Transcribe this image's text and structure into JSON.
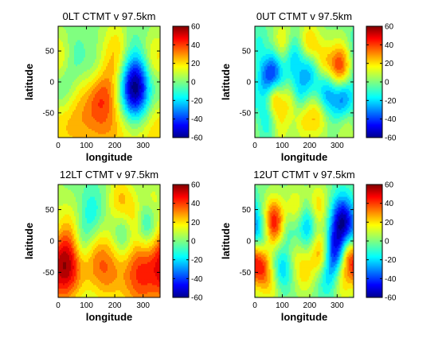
{
  "chart_data": [
    {
      "type": "heatmap",
      "title": "0LT CTMT v 97.5km",
      "xlabel": "longitude",
      "ylabel": "latitude",
      "xlim": [
        0,
        360
      ],
      "ylim": [
        -90,
        90
      ],
      "xticks": [
        "0",
        "100",
        "200",
        "300"
      ],
      "yticks": [
        "50",
        "0",
        "-50"
      ],
      "colorbar": {
        "min": -60,
        "max": 60,
        "ticks": [
          "60",
          "40",
          "20",
          "0",
          "-20",
          "-40",
          "-60"
        ],
        "colormap": "jet"
      },
      "features": [
        {
          "lon": 280,
          "lat": -15,
          "value": -55,
          "r": 40
        },
        {
          "lon": 255,
          "lat": -5,
          "value": -30,
          "r": 35
        },
        {
          "lon": 55,
          "lat": 35,
          "value": -12,
          "r": 30
        },
        {
          "lon": 130,
          "lat": 15,
          "value": -15,
          "r": 30
        },
        {
          "lon": 20,
          "lat": -15,
          "value": -15,
          "r": 28
        },
        {
          "lon": 250,
          "lat": 65,
          "value": -10,
          "r": 30
        },
        {
          "lon": 220,
          "lat": 45,
          "value": 25,
          "r": 40
        },
        {
          "lon": 145,
          "lat": -15,
          "value": 22,
          "r": 35
        },
        {
          "lon": 20,
          "lat": 40,
          "value": 12,
          "r": 30
        },
        {
          "lon": 330,
          "lat": 35,
          "value": 15,
          "r": 30
        },
        {
          "lon": 180,
          "lat": -60,
          "value": 25,
          "r": 60
        },
        {
          "lon": 60,
          "lat": -60,
          "value": 20,
          "r": 50
        },
        {
          "lon": 310,
          "lat": -60,
          "value": 22,
          "r": 50
        }
      ]
    },
    {
      "type": "heatmap",
      "title": "0UT CTMT v 97.5km",
      "xlabel": "longitude",
      "ylabel": "latitude",
      "xlim": [
        0,
        360
      ],
      "ylim": [
        -90,
        90
      ],
      "xticks": [
        "0",
        "100",
        "200",
        "300"
      ],
      "yticks": [
        "50",
        "0",
        "-50"
      ],
      "colorbar": {
        "min": -60,
        "max": 60,
        "ticks": [
          "60",
          "40",
          "20",
          "0",
          "-20",
          "-40",
          "-60"
        ],
        "colormap": "jet"
      },
      "features": [
        {
          "lon": 60,
          "lat": 10,
          "value": -50,
          "r": 30
        },
        {
          "lon": 310,
          "lat": 20,
          "value": 45,
          "r": 28
        },
        {
          "lon": 320,
          "lat": -25,
          "value": -40,
          "r": 28
        },
        {
          "lon": 70,
          "lat": -25,
          "value": 40,
          "r": 22
        },
        {
          "lon": 260,
          "lat": -15,
          "value": -28,
          "r": 26
        },
        {
          "lon": 200,
          "lat": 20,
          "value": -25,
          "r": 25
        },
        {
          "lon": 140,
          "lat": 40,
          "value": -20,
          "r": 25
        },
        {
          "lon": 20,
          "lat": 55,
          "value": -15,
          "r": 25
        },
        {
          "lon": 160,
          "lat": -20,
          "value": -20,
          "r": 25
        },
        {
          "lon": 100,
          "lat": 60,
          "value": 20,
          "r": 25
        },
        {
          "lon": 200,
          "lat": 60,
          "value": 25,
          "r": 25
        },
        {
          "lon": 250,
          "lat": 30,
          "value": 20,
          "r": 25
        },
        {
          "lon": 40,
          "lat": 45,
          "value": 15,
          "r": 22
        },
        {
          "lon": 130,
          "lat": -30,
          "value": 18,
          "r": 22
        },
        {
          "lon": 230,
          "lat": -55,
          "value": 20,
          "r": 25
        },
        {
          "lon": 180,
          "lat": -60,
          "value": 18,
          "r": 25
        },
        {
          "lon": 90,
          "lat": -70,
          "value": 15,
          "r": 25
        },
        {
          "lon": 50,
          "lat": -60,
          "value": -18,
          "r": 25
        },
        {
          "lon": 330,
          "lat": -65,
          "value": 15,
          "r": 25
        }
      ]
    },
    {
      "type": "heatmap",
      "title": "12LT CTMT v 97.5km",
      "xlabel": "longitude",
      "ylabel": "latitude",
      "xlim": [
        0,
        360
      ],
      "ylim": [
        -90,
        90
      ],
      "xticks": [
        "0",
        "100",
        "200",
        "300"
      ],
      "yticks": [
        "50",
        "0",
        "-50"
      ],
      "colorbar": {
        "min": -60,
        "max": 60,
        "ticks": [
          "60",
          "40",
          "20",
          "0",
          "-20",
          "-40",
          "-60"
        ],
        "colormap": "jet"
      },
      "features": [
        {
          "lon": 290,
          "lat": -50,
          "value": 40,
          "r": 50
        },
        {
          "lon": 30,
          "lat": -50,
          "value": 35,
          "r": 40
        },
        {
          "lon": 170,
          "lat": -45,
          "value": 28,
          "r": 40
        },
        {
          "lon": 110,
          "lat": -20,
          "value": 20,
          "r": 35
        },
        {
          "lon": 30,
          "lat": -20,
          "value": 20,
          "r": 35
        },
        {
          "lon": 90,
          "lat": -5,
          "value": -22,
          "r": 28
        },
        {
          "lon": 230,
          "lat": 10,
          "value": -20,
          "r": 28
        },
        {
          "lon": 310,
          "lat": 25,
          "value": -25,
          "r": 28
        },
        {
          "lon": 120,
          "lat": 45,
          "value": -15,
          "r": 28
        },
        {
          "lon": 40,
          "lat": 35,
          "value": 8,
          "r": 30
        },
        {
          "lon": 220,
          "lat": 65,
          "value": 22,
          "r": 30
        },
        {
          "lon": 270,
          "lat": 40,
          "value": 15,
          "r": 25
        },
        {
          "lon": 330,
          "lat": 65,
          "value": 12,
          "r": 25
        }
      ]
    },
    {
      "type": "heatmap",
      "title": "12UT CTMT v 97.5km",
      "xlabel": "longitude",
      "ylabel": "latitude",
      "xlim": [
        0,
        360
      ],
      "ylim": [
        -90,
        90
      ],
      "xticks": [
        "0",
        "100",
        "200",
        "300"
      ],
      "yticks": [
        "50",
        "0",
        "-50"
      ],
      "colorbar": {
        "min": -60,
        "max": 60,
        "ticks": [
          "60",
          "40",
          "20",
          "0",
          "-20",
          "-40",
          "-60"
        ],
        "colormap": "jet"
      },
      "features": [
        {
          "lon": 320,
          "lat": 30,
          "value": -55,
          "r": 30
        },
        {
          "lon": 70,
          "lat": 30,
          "value": 45,
          "r": 26
        },
        {
          "lon": 290,
          "lat": -20,
          "value": -40,
          "r": 28
        },
        {
          "lon": 340,
          "lat": -20,
          "value": 30,
          "r": 22
        },
        {
          "lon": 20,
          "lat": -40,
          "value": 40,
          "r": 25
        },
        {
          "lon": 240,
          "lat": -20,
          "value": 30,
          "r": 25
        },
        {
          "lon": 190,
          "lat": 25,
          "value": -25,
          "r": 25
        },
        {
          "lon": 130,
          "lat": 10,
          "value": -18,
          "r": 25
        },
        {
          "lon": 100,
          "lat": -45,
          "value": -22,
          "r": 25
        },
        {
          "lon": 20,
          "lat": 10,
          "value": -18,
          "r": 25
        },
        {
          "lon": 230,
          "lat": 55,
          "value": 20,
          "r": 25
        },
        {
          "lon": 150,
          "lat": 50,
          "value": 18,
          "r": 25
        },
        {
          "lon": 60,
          "lat": -70,
          "value": 15,
          "r": 25
        },
        {
          "lon": 180,
          "lat": -50,
          "value": 18,
          "r": 25
        },
        {
          "lon": 260,
          "lat": -60,
          "value": -15,
          "r": 25
        },
        {
          "lon": 320,
          "lat": -60,
          "value": 20,
          "r": 25
        },
        {
          "lon": 140,
          "lat": -10,
          "value": 15,
          "r": 25
        }
      ]
    }
  ]
}
